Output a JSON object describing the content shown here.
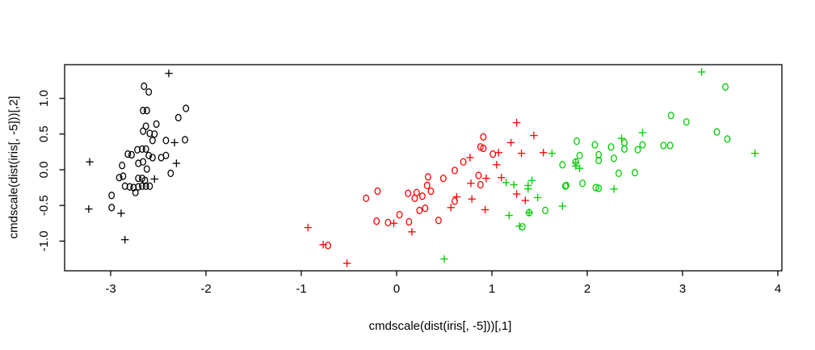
{
  "figure": {
    "background": "#FFFFFF",
    "plot_border_color": "#000000"
  },
  "chart_data": {
    "type": "scatter",
    "title": "",
    "xlabel": "cmdscale(dist(iris[, -5]))[,1]",
    "ylabel": "cmdscale(dist(iris[, -5]))[,2]",
    "x_ticks": [
      -3,
      -2,
      -1,
      0,
      1,
      2,
      3,
      4
    ],
    "x_tick_labels": [
      "-3",
      "-2",
      "-1",
      "0",
      "1",
      "2",
      "3",
      "4"
    ],
    "y_ticks": [
      -1.0,
      -0.5,
      0.0,
      0.5,
      1.0
    ],
    "y_tick_labels": [
      "-1.0",
      "-0.5",
      "0.0",
      "0.5",
      "1.0"
    ],
    "xlim": [
      -3.51,
      4.04
    ],
    "ylim": [
      -1.41,
      1.49
    ],
    "grid": false,
    "legend": "none",
    "point_symbols": [
      "o",
      "+"
    ],
    "series": [
      {
        "name": "black",
        "color": "#000000",
        "points": [
          [
            -2.39,
            1.35,
            "+"
          ],
          [
            -2.65,
            1.17,
            "o"
          ],
          [
            -2.6,
            1.09,
            "o"
          ],
          [
            -2.66,
            0.83,
            "o"
          ],
          [
            -2.62,
            0.83,
            "o"
          ],
          [
            -2.21,
            0.86,
            "o"
          ],
          [
            -2.29,
            0.73,
            "o"
          ],
          [
            -2.52,
            0.64,
            "o"
          ],
          [
            -2.63,
            0.61,
            "o"
          ],
          [
            -2.66,
            0.54,
            "o"
          ],
          [
            -2.59,
            0.51,
            "o"
          ],
          [
            -2.54,
            0.5,
            "o"
          ],
          [
            -2.56,
            0.41,
            "o"
          ],
          [
            -2.42,
            0.41,
            "o"
          ],
          [
            -2.33,
            0.38,
            "+"
          ],
          [
            -2.22,
            0.42,
            "o"
          ],
          [
            -2.82,
            0.22,
            "o"
          ],
          [
            -2.78,
            0.21,
            "o"
          ],
          [
            -2.72,
            0.28,
            "o"
          ],
          [
            -2.67,
            0.29,
            "o"
          ],
          [
            -2.63,
            0.29,
            "o"
          ],
          [
            -2.6,
            0.2,
            "o"
          ],
          [
            -2.56,
            0.17,
            "o"
          ],
          [
            -3.22,
            0.11,
            "+"
          ],
          [
            -2.88,
            0.06,
            "o"
          ],
          [
            -2.71,
            0.09,
            "o"
          ],
          [
            -2.66,
            0.11,
            "o"
          ],
          [
            -2.47,
            0.17,
            "o"
          ],
          [
            -2.42,
            0.2,
            "o"
          ],
          [
            -2.31,
            0.09,
            "+"
          ],
          [
            -2.62,
            0.01,
            "o"
          ],
          [
            -2.37,
            -0.05,
            "o"
          ],
          [
            -2.91,
            -0.11,
            "o"
          ],
          [
            -2.87,
            -0.09,
            "o"
          ],
          [
            -2.71,
            -0.12,
            "o"
          ],
          [
            -2.67,
            -0.12,
            "o"
          ],
          [
            -2.64,
            -0.15,
            "o"
          ],
          [
            -2.54,
            -0.13,
            "+"
          ],
          [
            -2.85,
            -0.23,
            "o"
          ],
          [
            -2.8,
            -0.24,
            "o"
          ],
          [
            -2.76,
            -0.25,
            "o"
          ],
          [
            -2.71,
            -0.24,
            "o"
          ],
          [
            -2.67,
            -0.23,
            "o"
          ],
          [
            -2.63,
            -0.23,
            "o"
          ],
          [
            -2.59,
            -0.23,
            "o"
          ],
          [
            -2.74,
            -0.32,
            "o"
          ],
          [
            -2.99,
            -0.36,
            "o"
          ],
          [
            -3.23,
            -0.55,
            "+"
          ],
          [
            -2.99,
            -0.53,
            "o"
          ],
          [
            -2.89,
            -0.61,
            "+"
          ],
          [
            -2.85,
            -0.98,
            "+"
          ]
        ]
      },
      {
        "name": "red",
        "color": "#FF0000",
        "points": [
          [
            1.26,
            0.66,
            "+"
          ],
          [
            0.91,
            0.46,
            "o"
          ],
          [
            1.2,
            0.38,
            "+"
          ],
          [
            1.44,
            0.48,
            "+"
          ],
          [
            0.88,
            0.32,
            "o"
          ],
          [
            0.91,
            0.3,
            "o"
          ],
          [
            1.01,
            0.22,
            "o"
          ],
          [
            1.07,
            0.24,
            "+"
          ],
          [
            1.31,
            0.23,
            "+"
          ],
          [
            1.54,
            0.24,
            "+"
          ],
          [
            0.7,
            0.11,
            "o"
          ],
          [
            0.77,
            0.17,
            "+"
          ],
          [
            0.61,
            -0.01,
            "o"
          ],
          [
            1.05,
            0.07,
            "+"
          ],
          [
            0.33,
            -0.1,
            "o"
          ],
          [
            0.49,
            -0.12,
            "o"
          ],
          [
            0.86,
            -0.08,
            "o"
          ],
          [
            0.78,
            -0.19,
            "+"
          ],
          [
            0.88,
            -0.21,
            "o"
          ],
          [
            0.94,
            -0.12,
            "+"
          ],
          [
            1.1,
            -0.11,
            "+"
          ],
          [
            0.63,
            -0.38,
            "+"
          ],
          [
            0.61,
            -0.44,
            "o"
          ],
          [
            0.79,
            -0.41,
            "+"
          ],
          [
            0.57,
            -0.53,
            "+"
          ],
          [
            0.93,
            -0.56,
            "+"
          ],
          [
            0.44,
            -0.71,
            "o"
          ],
          [
            1.26,
            -0.34,
            "+"
          ],
          [
            1.35,
            -0.43,
            "+"
          ],
          [
            -0.2,
            -0.3,
            "o"
          ],
          [
            -0.32,
            -0.4,
            "o"
          ],
          [
            0.12,
            -0.33,
            "o"
          ],
          [
            0.21,
            -0.32,
            "o"
          ],
          [
            0.27,
            -0.37,
            "o"
          ],
          [
            0.19,
            -0.4,
            "o"
          ],
          [
            0.32,
            -0.22,
            "o"
          ],
          [
            0.36,
            -0.3,
            "o"
          ],
          [
            0.24,
            -0.57,
            "o"
          ],
          [
            0.3,
            -0.54,
            "o"
          ],
          [
            0.03,
            -0.63,
            "o"
          ],
          [
            -0.21,
            -0.72,
            "o"
          ],
          [
            -0.09,
            -0.74,
            "o"
          ],
          [
            -0.03,
            -0.75,
            "+"
          ],
          [
            0.13,
            -0.73,
            "o"
          ],
          [
            0.16,
            -0.87,
            "+"
          ],
          [
            -0.93,
            -0.81,
            "+"
          ],
          [
            -0.77,
            -1.05,
            "+"
          ],
          [
            -0.72,
            -1.06,
            "o"
          ],
          [
            -0.52,
            -1.31,
            "+"
          ]
        ]
      },
      {
        "name": "green",
        "color": "#00CC00",
        "points": [
          [
            1.15,
            -0.18,
            "+"
          ],
          [
            1.23,
            -0.21,
            "+"
          ],
          [
            1.42,
            -0.15,
            "+"
          ],
          [
            1.38,
            -0.22,
            "+"
          ],
          [
            1.38,
            -0.27,
            "+"
          ],
          [
            1.48,
            -0.39,
            "+"
          ],
          [
            1.18,
            -0.64,
            "+"
          ],
          [
            1.39,
            -0.6,
            "o"
          ],
          [
            1.39,
            -0.6,
            "+"
          ],
          [
            1.56,
            -0.57,
            "o"
          ],
          [
            1.74,
            -0.51,
            "+"
          ],
          [
            1.63,
            0.23,
            "+"
          ],
          [
            1.29,
            -0.79,
            "+"
          ],
          [
            1.32,
            -0.8,
            "o"
          ],
          [
            1.74,
            0.07,
            "o"
          ],
          [
            1.77,
            -0.23,
            "o"
          ],
          [
            0.5,
            -1.25,
            "+"
          ],
          [
            2.88,
            0.76,
            "o"
          ],
          [
            3.04,
            0.67,
            "o"
          ],
          [
            2.58,
            0.52,
            "+"
          ],
          [
            2.36,
            0.44,
            "+"
          ],
          [
            1.89,
            0.4,
            "o"
          ],
          [
            2.08,
            0.35,
            "o"
          ],
          [
            2.25,
            0.32,
            "o"
          ],
          [
            2.39,
            0.38,
            "o"
          ],
          [
            2.39,
            0.29,
            "o"
          ],
          [
            2.58,
            0.35,
            "o"
          ],
          [
            2.53,
            0.28,
            "o"
          ],
          [
            2.8,
            0.34,
            "o"
          ],
          [
            2.87,
            0.34,
            "o"
          ],
          [
            1.92,
            0.2,
            "o"
          ],
          [
            2.12,
            0.21,
            "o"
          ],
          [
            2.12,
            0.13,
            "o"
          ],
          [
            2.28,
            0.16,
            "o"
          ],
          [
            1.88,
            0.11,
            "o"
          ],
          [
            1.88,
            0.1,
            "+"
          ],
          [
            1.88,
            0.05,
            "+"
          ],
          [
            1.92,
            0.02,
            "+"
          ],
          [
            2.33,
            -0.05,
            "o"
          ],
          [
            2.5,
            -0.04,
            "o"
          ],
          [
            1.78,
            -0.22,
            "o"
          ],
          [
            1.95,
            -0.19,
            "o"
          ],
          [
            2.09,
            -0.25,
            "o"
          ],
          [
            2.12,
            -0.26,
            "o"
          ],
          [
            2.28,
            -0.27,
            "+"
          ],
          [
            3.2,
            1.37,
            "+"
          ],
          [
            3.45,
            1.16,
            "o"
          ],
          [
            3.36,
            0.53,
            "o"
          ],
          [
            3.47,
            0.43,
            "o"
          ],
          [
            3.76,
            0.23,
            "+"
          ]
        ]
      }
    ]
  }
}
